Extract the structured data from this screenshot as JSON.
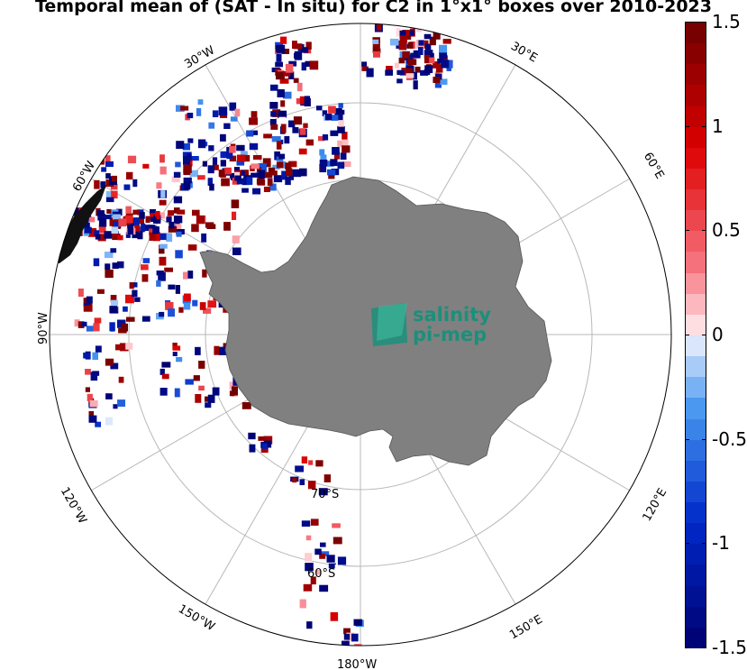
{
  "title": "Temporal mean of (SAT - In situ) for C2 in 1°x1° boxes over 2010-2023",
  "colors": {
    "land": "#808080",
    "ocean": "#ffffff",
    "grid": "#b8b8b8",
    "logo": "#1c8f7a"
  },
  "colorbar": {
    "min": -1.5,
    "max": 1.5,
    "n_levels": 30,
    "ticks": [
      "1.5",
      "1",
      "0.5",
      "0",
      "-0.5",
      "-1",
      "-1.5"
    ]
  },
  "map": {
    "projection": "south polar stereographic",
    "longitude_labels": {
      "lon_30w": "30°W",
      "lon_30e": "30°E",
      "lon_60w": "60°W",
      "lon_60e": "60°E",
      "lon_90w": "90°W",
      "lon_120w": "120°W",
      "lon_120e": "120°E",
      "lon_150w": "150°W",
      "lon_150e": "150°E",
      "lon_180w": "180°W"
    },
    "latitude_labels": {
      "lat_70s": "70°S",
      "lat_60s": "60°S"
    },
    "logo": {
      "line1": "salinity",
      "line2": "pi-mep"
    }
  }
}
